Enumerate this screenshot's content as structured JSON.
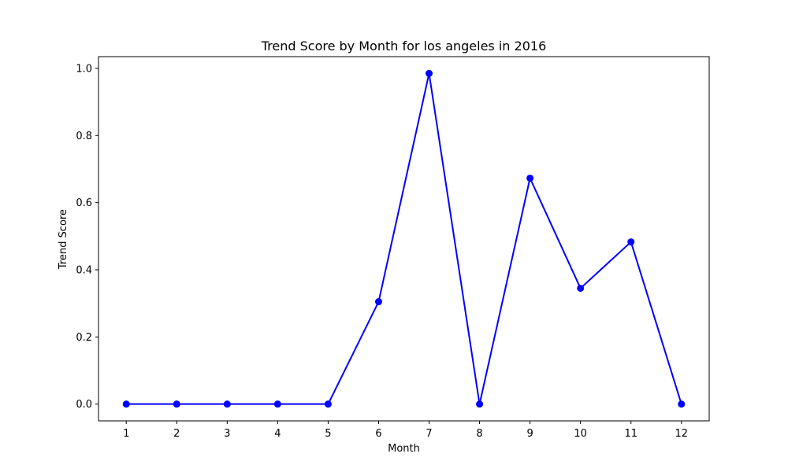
{
  "chart_data": {
    "type": "line",
    "title": "Trend Score by Month for los angeles in 2016",
    "xlabel": "Month",
    "ylabel": "Trend Score",
    "x": [
      1,
      2,
      3,
      4,
      5,
      6,
      7,
      8,
      9,
      10,
      11,
      12
    ],
    "series": [
      {
        "values": [
          0.0,
          0.0,
          0.0,
          0.0,
          0.0,
          0.305,
          0.985,
          0.0,
          0.673,
          0.345,
          0.483,
          0.0
        ],
        "color": "#0000ff",
        "marker": "circle"
      }
    ],
    "xticks": [
      "1",
      "2",
      "3",
      "4",
      "5",
      "6",
      "7",
      "8",
      "9",
      "10",
      "11",
      "12"
    ],
    "yticks": [
      "0.0",
      "0.2",
      "0.4",
      "0.6",
      "0.8",
      "1.0"
    ],
    "xlim": [
      0.45,
      12.55
    ],
    "ylim": [
      -0.05,
      1.035
    ],
    "grid": false,
    "legend": "none"
  }
}
